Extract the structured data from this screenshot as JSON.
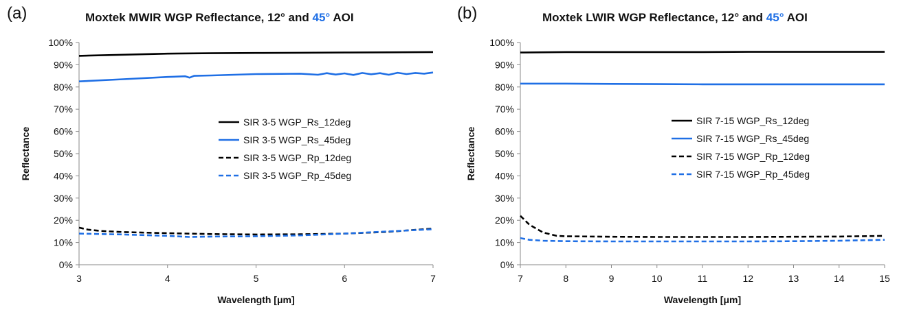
{
  "chart_data": [
    {
      "panel_tag": "(a)",
      "type": "line",
      "title": "Moxtek MWIR WGP Reflectance, 12° and ",
      "title_accent": "45°",
      "title_suffix": " AOI",
      "xlabel": "Wavelength [μm]",
      "ylabel": "Reflectance",
      "xlim": [
        3,
        7
      ],
      "ylim": [
        0,
        1
      ],
      "x_ticks": [
        "3",
        "4",
        "5",
        "6",
        "7"
      ],
      "y_ticks": [
        "0%",
        "10%",
        "20%",
        "30%",
        "40%",
        "50%",
        "60%",
        "70%",
        "80%",
        "90%",
        "100%"
      ],
      "grid": false,
      "legend_position": "center-right",
      "series": [
        {
          "name": "SIR 3-5 WGP_Rs_12deg",
          "color": "#000000",
          "dash": false,
          "x": [
            3.0,
            3.5,
            4.0,
            4.5,
            5.0,
            5.5,
            6.0,
            6.5,
            7.0
          ],
          "y": [
            0.94,
            0.945,
            0.95,
            0.952,
            0.953,
            0.954,
            0.955,
            0.956,
            0.957
          ]
        },
        {
          "name": "SIR 3-5 WGP_Rs_45deg",
          "color": "#1f6fe5",
          "dash": false,
          "x": [
            3.0,
            3.5,
            4.0,
            4.2,
            4.25,
            4.3,
            4.5,
            5.0,
            5.5,
            5.7,
            5.8,
            5.9,
            6.0,
            6.1,
            6.2,
            6.3,
            6.4,
            6.5,
            6.6,
            6.7,
            6.8,
            6.9,
            7.0
          ],
          "y": [
            0.825,
            0.835,
            0.845,
            0.848,
            0.842,
            0.85,
            0.852,
            0.858,
            0.86,
            0.855,
            0.862,
            0.856,
            0.861,
            0.854,
            0.863,
            0.857,
            0.862,
            0.855,
            0.864,
            0.858,
            0.863,
            0.86,
            0.865
          ]
        },
        {
          "name": "SIR 3-5 WGP_Rp_12deg",
          "color": "#000000",
          "dash": true,
          "x": [
            3.0,
            3.1,
            3.25,
            3.5,
            4.0,
            4.5,
            5.0,
            5.5,
            6.0,
            6.5,
            7.0
          ],
          "y": [
            0.167,
            0.158,
            0.152,
            0.147,
            0.142,
            0.138,
            0.136,
            0.137,
            0.14,
            0.148,
            0.163
          ]
        },
        {
          "name": "SIR 3-5 WGP_Rp_45deg",
          "color": "#1f6fe5",
          "dash": true,
          "x": [
            3.0,
            3.5,
            4.0,
            4.25,
            4.5,
            5.0,
            5.5,
            6.0,
            6.5,
            7.0
          ],
          "y": [
            0.14,
            0.136,
            0.13,
            0.125,
            0.127,
            0.128,
            0.132,
            0.14,
            0.15,
            0.16
          ]
        }
      ]
    },
    {
      "panel_tag": "(b)",
      "type": "line",
      "title": "Moxtek LWIR WGP Reflectance, 12° and ",
      "title_accent": "45°",
      "title_suffix": " AOI",
      "xlabel": "Wavelength [μm]",
      "ylabel": "Reflectance",
      "xlim": [
        7,
        15
      ],
      "ylim": [
        0,
        1
      ],
      "x_ticks": [
        "7",
        "8",
        "9",
        "10",
        "11",
        "12",
        "13",
        "14",
        "15"
      ],
      "y_ticks": [
        "0%",
        "10%",
        "20%",
        "30%",
        "40%",
        "50%",
        "60%",
        "70%",
        "80%",
        "90%",
        "100%"
      ],
      "grid": false,
      "legend_position": "center-right",
      "series": [
        {
          "name": "SIR 7-15 WGP_Rs_12deg",
          "color": "#000000",
          "dash": false,
          "x": [
            7,
            8,
            9,
            10,
            11,
            12,
            13,
            14,
            15
          ],
          "y": [
            0.955,
            0.957,
            0.957,
            0.957,
            0.957,
            0.958,
            0.958,
            0.958,
            0.958
          ]
        },
        {
          "name": "SIR 7-15 WGP_Rs_45deg",
          "color": "#1f6fe5",
          "dash": false,
          "x": [
            7,
            8,
            9,
            10,
            11,
            12,
            13,
            14,
            15
          ],
          "y": [
            0.815,
            0.815,
            0.814,
            0.813,
            0.812,
            0.812,
            0.812,
            0.812,
            0.812
          ]
        },
        {
          "name": "SIR 7-15 WGP_Rp_12deg",
          "color": "#000000",
          "dash": true,
          "x": [
            7.0,
            7.2,
            7.5,
            7.8,
            8.0,
            9,
            10,
            11,
            12,
            13,
            14,
            15
          ],
          "y": [
            0.22,
            0.18,
            0.145,
            0.13,
            0.128,
            0.126,
            0.125,
            0.125,
            0.125,
            0.126,
            0.127,
            0.13
          ]
        },
        {
          "name": "SIR 7-15 WGP_Rp_45deg",
          "color": "#1f6fe5",
          "dash": true,
          "x": [
            7.0,
            7.2,
            7.5,
            8.0,
            9,
            10,
            11,
            12,
            13,
            14,
            15
          ],
          "y": [
            0.12,
            0.112,
            0.108,
            0.106,
            0.105,
            0.105,
            0.105,
            0.105,
            0.106,
            0.108,
            0.112
          ]
        }
      ]
    }
  ]
}
